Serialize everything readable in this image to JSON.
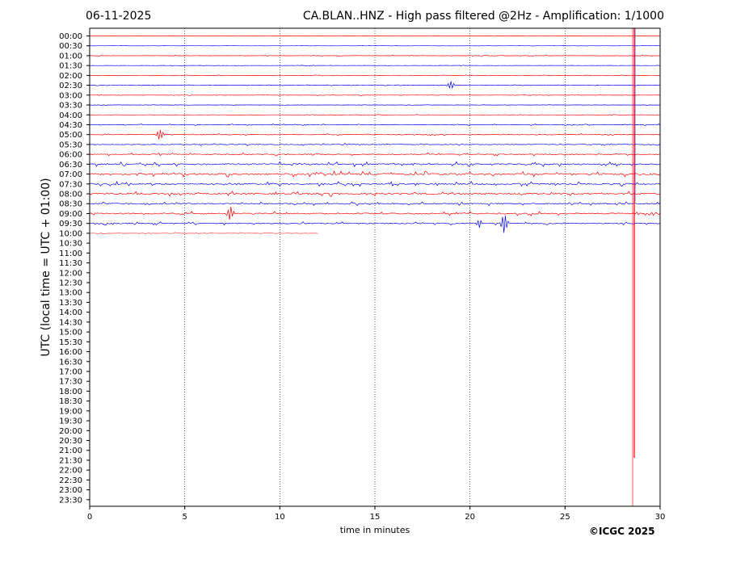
{
  "header": {
    "date": "06-11-2025",
    "title": "CA.BLAN..HNZ - High pass filtered @2Hz - Amplification: 1/1000",
    "copyright": "©ICGC 2025"
  },
  "chart_data": {
    "type": "line",
    "title": "CA.BLAN..HNZ - High pass filtered @2Hz - Amplification: 1/1000",
    "xlabel": "time in minutes",
    "ylabel": "UTC (local time = UTC + 01:00)",
    "xlim": [
      0,
      30
    ],
    "x_ticks": [
      "0",
      "5",
      "10",
      "15",
      "20",
      "25",
      "30"
    ],
    "grid": "vertical dotted lines every 5 minutes",
    "y_tick_labels": [
      "00:00",
      "00:30",
      "01:00",
      "01:30",
      "02:00",
      "02:30",
      "03:00",
      "03:30",
      "04:00",
      "04:30",
      "05:00",
      "05:30",
      "06:00",
      "06:30",
      "07:00",
      "07:30",
      "08:00",
      "08:30",
      "09:00",
      "09:30",
      "10:00",
      "10:30",
      "11:00",
      "11:30",
      "12:00",
      "12:30",
      "13:00",
      "13:30",
      "14:00",
      "14:30",
      "15:00",
      "15:30",
      "16:00",
      "16:30",
      "17:00",
      "17:30",
      "18:00",
      "18:30",
      "19:00",
      "19:30",
      "20:00",
      "20:30",
      "21:00",
      "21:30",
      "22:00",
      "22:30",
      "23:00",
      "23:30"
    ],
    "trace_colors": [
      "#ff0000",
      "#0000ff"
    ],
    "traces_recorded": 21,
    "last_trace_end_minute": 12,
    "noise_level": [
      0.05,
      0.05,
      0.1,
      0.08,
      0.1,
      0.12,
      0.1,
      0.08,
      0.1,
      0.2,
      0.2,
      0.25,
      0.3,
      0.5,
      0.6,
      0.5,
      0.55,
      0.4,
      0.45,
      0.35,
      0.2
    ],
    "events": [
      {
        "row": 5,
        "minute": 19.0,
        "amplitude": 0.6
      },
      {
        "row": 10,
        "minute": 3.7,
        "amplitude": 0.8
      },
      {
        "row": 18,
        "minute": 7.4,
        "amplitude": 1.2
      },
      {
        "row": 19,
        "minute": 20.5,
        "amplitude": 0.6
      },
      {
        "row": 19,
        "minute": 21.8,
        "amplitude": 1.5
      },
      {
        "row": 0,
        "minute": 28.6,
        "amplitude": 3.0
      }
    ]
  }
}
